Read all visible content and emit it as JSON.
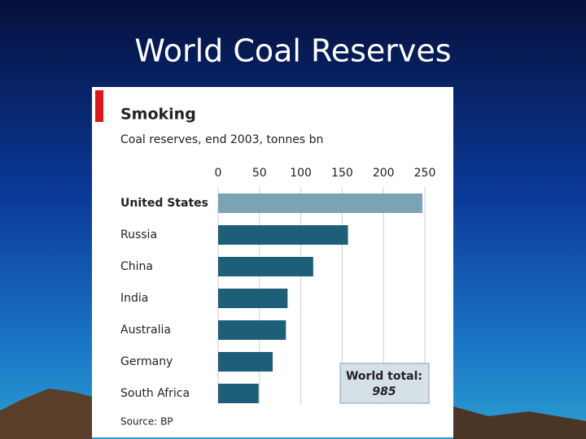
{
  "slide_title": "World Coal Reserves",
  "chart_data": {
    "type": "hbar",
    "title": "Smoking",
    "subtitle": "Coal reserves, end 2003, tonnes bn",
    "categories": [
      "United States",
      "Russia",
      "China",
      "India",
      "Australia",
      "Germany",
      "South Africa"
    ],
    "values": [
      247,
      157,
      115,
      84,
      82,
      66,
      49
    ],
    "colors": [
      "#7aa3b6",
      "#1d5e78",
      "#1d5e78",
      "#1d5e78",
      "#1d5e78",
      "#1d5e78",
      "#1d5e78"
    ],
    "xlim": [
      0,
      250
    ],
    "xticks": [
      0,
      50,
      100,
      150,
      200,
      250
    ],
    "grid": true,
    "annotation": {
      "label": "World total:",
      "value": "985"
    },
    "source": "Source: BP"
  }
}
